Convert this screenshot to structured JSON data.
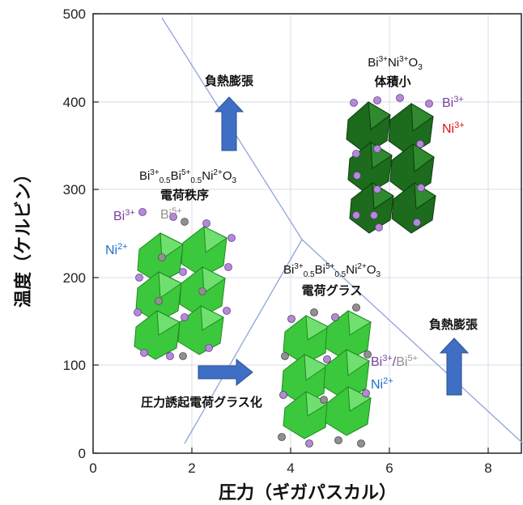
{
  "axes": {
    "xlabel": "圧力（ギガパスカル）",
    "ylabel": "温度（ケルビン）",
    "xticks": [
      "0",
      "2",
      "4",
      "6",
      "8"
    ],
    "yticks": [
      "0",
      "100",
      "200",
      "300",
      "400",
      "500"
    ],
    "xlim": [
      0,
      8.8
    ],
    "ylim": [
      0,
      500
    ]
  },
  "phases": {
    "top_right": {
      "formula_prefix": "Bi",
      "formula": "Bi3+Ni3+O3",
      "label": "体積小"
    },
    "left": {
      "formula": "Bi3+0.5Bi5+0.5Ni2+O3",
      "label": "電荷秩序"
    },
    "bottom": {
      "formula": "Bi3+0.5Bi5+0.5Ni2+O3",
      "label": "電荷グラス"
    }
  },
  "annotations": {
    "neg_expansion_top": "負熱膨張",
    "neg_expansion_right": "負熱膨張",
    "pressure_induced": "圧力誘起電荷グラス化"
  },
  "ions": {
    "tr_bi": "Bi",
    "tr_bi_ch": "3+",
    "tr_ni": "Ni",
    "tr_ni_ch": "3+",
    "l_bi3": "Bi",
    "l_bi3_ch": "3+",
    "l_bi5": "Bi",
    "l_bi5_ch": "5+",
    "l_ni": "Ni",
    "l_ni_ch": "2+",
    "b_bi3": "Bi",
    "b_bi3_ch": "3+",
    "b_slash": "/",
    "b_bi5": "Bi",
    "b_bi5_ch": "5+",
    "b_ni": "Ni",
    "b_ni_ch": "2+"
  },
  "formula_parts": {
    "tr": [
      "Bi",
      "3+",
      "Ni",
      "3+",
      "O",
      "3"
    ],
    "cd": [
      "Bi",
      "3+",
      "0.5",
      "Bi",
      "5+",
      "0.5",
      "Ni",
      "2+",
      "O",
      "3"
    ]
  },
  "colors": {
    "bi3": "#7a3fa0",
    "bi5": "#909090",
    "ni2": "#1f6fc2",
    "ni3": "#e01010",
    "dark_octa": "#1d6b1d",
    "light_octa": "#3cc83c",
    "arrow": "#3f6fc4",
    "boundary": "#8fa4d8"
  }
}
